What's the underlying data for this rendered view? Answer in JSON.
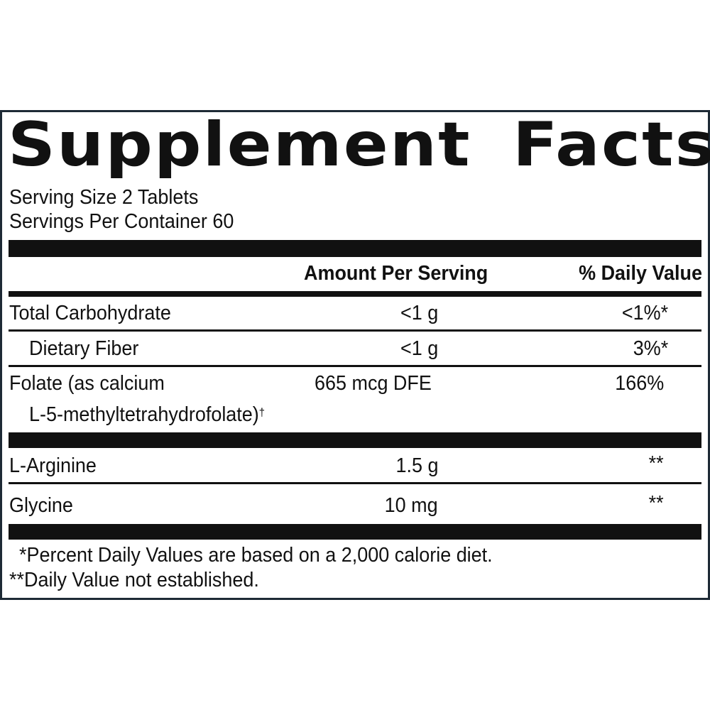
{
  "label": {
    "title": "Supplement Facts",
    "serving_size": "Serving Size 2 Tablets",
    "servings_per_container": "Servings Per Container 60",
    "header": {
      "amount": "Amount Per Serving",
      "daily_value": "% Daily Value"
    },
    "rows": [
      {
        "name": "Total Carbohydrate",
        "amount": "<1 g",
        "dv": "<1%*"
      },
      {
        "name": "Dietary Fiber",
        "amount": "<1 g",
        "dv": "3%*"
      },
      {
        "name": "Folate (as calcium",
        "name_line2": "L-5-methyltetrahydrofolate)",
        "dagger": "†",
        "amount": "665 mcg DFE",
        "dv": "166%"
      },
      {
        "name": "L-Arginine",
        "amount": "1.5 g",
        "dv": "**"
      },
      {
        "name": "Glycine",
        "amount": "10 mg",
        "dv": "**"
      }
    ],
    "footnotes": [
      "*Percent Daily Values are based on a 2,000 calorie diet.",
      "**Daily Value not established."
    ]
  }
}
